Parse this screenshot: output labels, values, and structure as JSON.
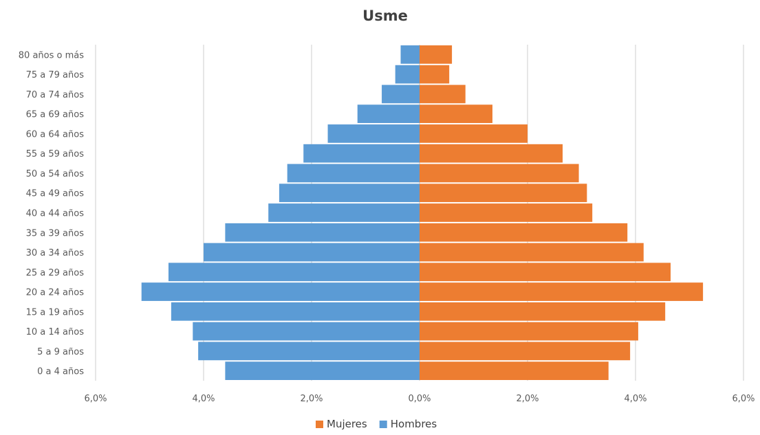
{
  "chart_data": {
    "type": "bar",
    "orientation": "horizontal",
    "title": "Usme",
    "categories": [
      "0 a 4 años",
      "5 a 9 años",
      "10 a 14 años",
      "15 a 19 años",
      "20 a 24 años",
      "25 a 29 años",
      "30 a 34 años",
      "35 a 39 años",
      "40 a 44 años",
      "45 a 49 años",
      "50 a 54 años",
      "55 a 59 años",
      "60 a 64 años",
      "65 a 69 años",
      "70 a 74 años",
      "75 a 79 años",
      "80 años o más"
    ],
    "series": [
      {
        "name": "Mujeres",
        "color": "#ed7d31",
        "values": [
          3.5,
          3.9,
          4.05,
          4.55,
          5.25,
          4.65,
          4.15,
          3.85,
          3.2,
          3.1,
          2.95,
          2.65,
          2.0,
          1.35,
          0.85,
          0.55,
          0.6
        ]
      },
      {
        "name": "Hombres",
        "color": "#5b9bd5",
        "values": [
          3.6,
          4.1,
          4.2,
          4.6,
          5.15,
          4.65,
          4.0,
          3.6,
          2.8,
          2.6,
          2.45,
          2.15,
          1.7,
          1.15,
          0.7,
          0.45,
          0.35
        ]
      }
    ],
    "xlim": [
      -6,
      6
    ],
    "x_ticks": [
      "6,0%",
      "4,0%",
      "2,0%",
      "0,0%",
      "2,0%",
      "4,0%",
      "6,0%"
    ],
    "grid": true,
    "legend_position": "bottom"
  }
}
